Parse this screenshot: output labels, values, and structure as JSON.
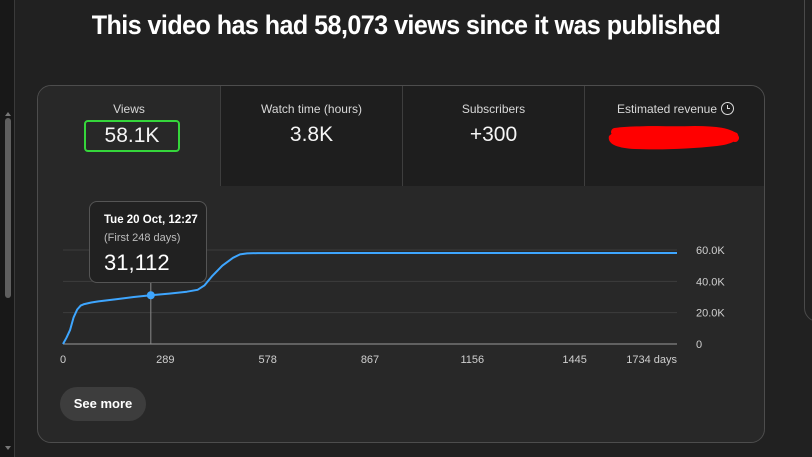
{
  "headline": "This video has had 58,073 views since it was published",
  "metrics": [
    {
      "label": "Views",
      "value": "58.1K",
      "selected": true
    },
    {
      "label": "Watch time (hours)",
      "value": "3.8K"
    },
    {
      "label": "Subscribers",
      "value": "+300"
    },
    {
      "label": "Estimated revenue",
      "value": "",
      "icon": "clock-icon",
      "redacted": true
    }
  ],
  "tooltip": {
    "date": "Tue 20 Oct, 12:27",
    "subtitle": "(First 248 days)",
    "value": "31,112"
  },
  "see_more_label": "See more",
  "colors": {
    "line": "#3ea6ff",
    "highlight_border": "#35d63b",
    "redaction": "#ff0000",
    "background": "#212121"
  },
  "chart_data": {
    "type": "line",
    "x_ticks": [
      "0",
      "289",
      "578",
      "867",
      "1156",
      "1445",
      "1734 days"
    ],
    "y_ticks": [
      "0",
      "20.0K",
      "40.0K",
      "60.0K"
    ],
    "xlim": [
      0,
      1734
    ],
    "ylim": [
      0,
      60000
    ],
    "grid": true,
    "highlight": {
      "x": 248,
      "y": 31112
    },
    "series": [
      {
        "x": [
          0,
          10,
          20,
          30,
          40,
          50,
          60,
          80,
          100,
          150,
          200,
          248,
          300,
          350,
          380,
          400,
          420,
          450,
          480,
          500,
          520,
          550,
          600,
          800,
          1000,
          1200,
          1400,
          1734
        ],
        "y": [
          0,
          4000,
          9000,
          17000,
          22000,
          24500,
          25500,
          26500,
          27200,
          28500,
          30000,
          31112,
          32200,
          33400,
          34600,
          37500,
          43000,
          50000,
          55000,
          57200,
          57800,
          58000,
          58050,
          58060,
          58065,
          58070,
          58072,
          58073
        ]
      }
    ]
  }
}
